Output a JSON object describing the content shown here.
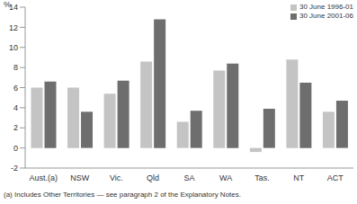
{
  "chart_data": {
    "type": "bar",
    "y_label": "%",
    "footnote": "(a) Includes Other Territories — see paragraph 2 of the Explanatory Notes.",
    "categories": [
      "Aust.(a)",
      "NSW",
      "Vic.",
      "Qld",
      "SA",
      "WA",
      "Tas.",
      "NT",
      "ACT"
    ],
    "series": [
      {
        "name": "30 June 1996-01",
        "color": "#c4c4c4",
        "values": [
          6.0,
          6.0,
          5.4,
          8.6,
          2.6,
          7.7,
          -0.4,
          8.8,
          3.6
        ]
      },
      {
        "name": "30 June 2001-06",
        "color": "#6e6e6e",
        "values": [
          6.6,
          3.6,
          6.7,
          12.8,
          3.7,
          8.4,
          3.9,
          6.5,
          4.7
        ]
      }
    ],
    "ylim": [
      -2,
      14
    ],
    "yticks": [
      -2,
      0,
      2,
      4,
      6,
      8,
      10,
      12,
      14
    ],
    "legend": "top-right"
  }
}
